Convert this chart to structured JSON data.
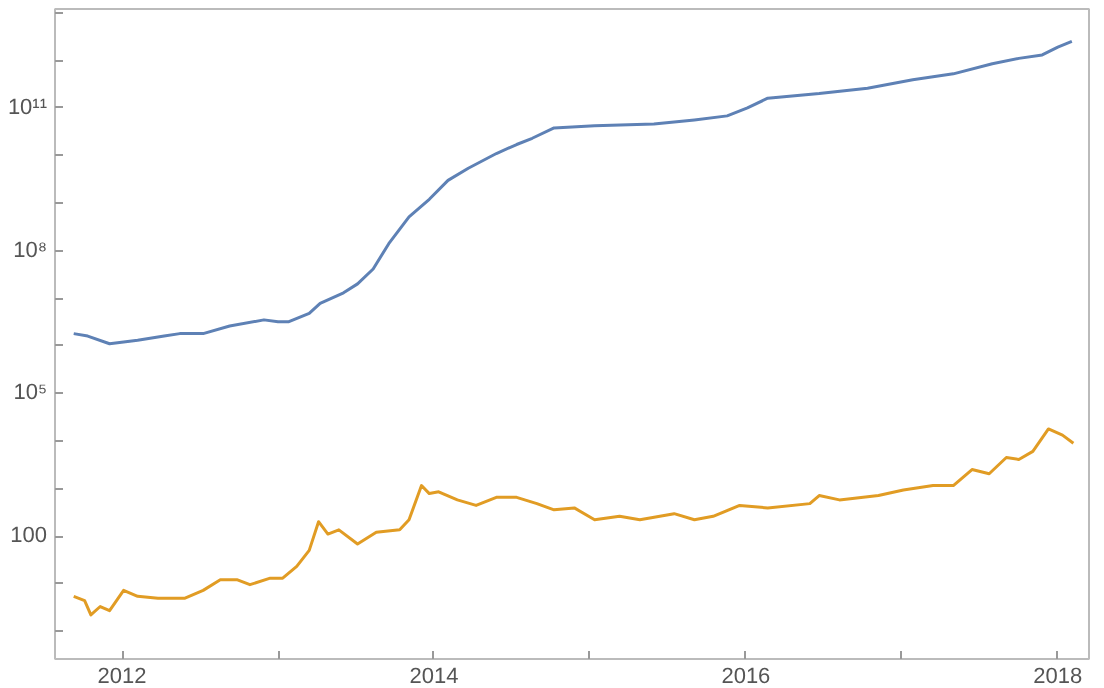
{
  "chart_data": {
    "type": "line",
    "log": "y",
    "grid": false,
    "xlim": [
      2011.57,
      2018.2
    ],
    "xticks": [
      2012,
      {
        "value": 2013,
        "label": null
      },
      2014,
      {
        "value": 2015,
        "label": null
      },
      2016,
      {
        "value": 2017,
        "label": null
      },
      2018
    ],
    "ylim": [
      0.26,
      12000000000000.0
    ],
    "yticks": [
      {
        "value": 1,
        "label": null
      },
      {
        "value": 10,
        "label": null
      },
      100,
      {
        "value": 1000,
        "label": null
      },
      {
        "value": 10000,
        "label": null
      },
      {
        "value": 100000,
        "label": "10⁵"
      },
      {
        "value": 1000000.0,
        "label": null
      },
      {
        "value": 10000000.0,
        "label": null
      },
      {
        "value": 100000000.0,
        "label": "10⁸"
      },
      {
        "value": 1000000000.0,
        "label": null
      },
      {
        "value": 10000000000.0,
        "label": null
      },
      {
        "value": 100000000000.0,
        "label": "10¹¹"
      },
      {
        "value": 1000000000000.0,
        "label": null
      },
      {
        "value": 10000000000000.0,
        "label": null
      }
    ],
    "series": [
      {
        "color": "#5e81b5",
        "x": [
          2011.69,
          2011.78,
          2011.92,
          2012.1,
          2012.27,
          2012.37,
          2012.52,
          2012.69,
          2012.91,
          2013.0,
          2013.07,
          2013.2,
          2013.27,
          2013.42,
          2013.51,
          2013.61,
          2013.71,
          2013.84,
          2013.97,
          2014.09,
          2014.22,
          2014.4,
          2014.53,
          2014.63,
          2014.77,
          2015.03,
          2015.41,
          2015.67,
          2015.88,
          2016.01,
          2016.14,
          2016.47,
          2016.78,
          2017.07,
          2017.33,
          2017.58,
          2017.75,
          2017.9,
          2018.0,
          2018.09
        ],
        "values": [
          1800000.0,
          1600000.0,
          1100000.0,
          1300000.0,
          1600000.0,
          1800000.0,
          1800000.0,
          2600000.0,
          3500000.0,
          3200000.0,
          3200000.0,
          4800000.0,
          7800000.0,
          13000000.0,
          20000000.0,
          41000000.0,
          140000000.0,
          510000000.0,
          1200000000.0,
          3000000000.0,
          5400000000.0,
          11000000000.0,
          17000000000.0,
          23000000000.0,
          38000000000.0,
          42000000000.0,
          46000000000.0,
          56000000000.0,
          68000000000.0,
          100000000000.0,
          160000000000.0,
          200000000000.0,
          260000000000.0,
          390000000000.0,
          520000000000.0,
          850000000000.0,
          1100000000000.0,
          1300000000000.0,
          1900000000000.0,
          2500000000000.0
        ]
      },
      {
        "color": "#e19c24",
        "x": [
          2011.69,
          2011.76,
          2011.8,
          2011.86,
          2011.92,
          2012.01,
          2012.1,
          2012.23,
          2012.4,
          2012.52,
          2012.63,
          2012.74,
          2012.82,
          2012.95,
          2013.03,
          2013.12,
          2013.2,
          2013.26,
          2013.32,
          2013.39,
          2013.51,
          2013.63,
          2013.78,
          2013.84,
          2013.92,
          2013.97,
          2014.03,
          2014.15,
          2014.27,
          2014.4,
          2014.53,
          2014.66,
          2014.77,
          2014.9,
          2015.03,
          2015.19,
          2015.32,
          2015.54,
          2015.67,
          2015.79,
          2015.96,
          2016.14,
          2016.41,
          2016.47,
          2016.6,
          2016.85,
          2017.01,
          2017.2,
          2017.33,
          2017.45,
          2017.56,
          2017.67,
          2017.75,
          2017.84,
          2017.94,
          2018.03,
          2018.1
        ],
        "values": [
          5.4,
          4.4,
          2.2,
          3.3,
          2.7,
          7.2,
          5.4,
          4.9,
          4.9,
          7.2,
          12,
          12,
          9.5,
          13,
          13,
          23,
          50,
          200,
          110,
          135,
          68,
          120,
          135,
          220,
          1150,
          780,
          850,
          575,
          440,
          650,
          650,
          480,
          355,
          390,
          220,
          260,
          220,
          295,
          220,
          260,
          440,
          390,
          480,
          710,
          575,
          710,
          930,
          1150,
          1150,
          2500,
          2040,
          4470,
          4070,
          6030,
          17800,
          13200,
          8900
        ]
      }
    ]
  }
}
